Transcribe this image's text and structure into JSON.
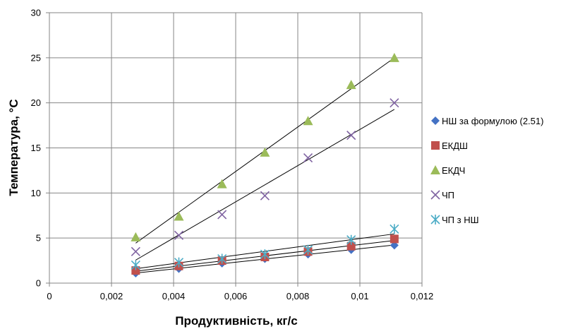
{
  "chart_data": {
    "type": "scatter",
    "title": "",
    "xlabel": "Продуктивність, кг/с",
    "ylabel": "Температура, °С",
    "xlim": [
      0,
      0.012
    ],
    "ylim": [
      0,
      30
    ],
    "x_ticks": [
      0,
      0.002,
      0.004,
      0.006,
      0.008,
      0.01,
      0.012
    ],
    "x_tick_labels": [
      "0",
      "0,002",
      "0,004",
      "0,006",
      "0,008",
      "0,01",
      "0,012"
    ],
    "y_ticks": [
      0,
      5,
      10,
      15,
      20,
      25,
      30
    ],
    "y_tick_labels": [
      "0",
      "5",
      "10",
      "15",
      "20",
      "25",
      "30"
    ],
    "grid": true,
    "legend_position": "right",
    "series": [
      {
        "name": "НШ за формулою (2.51)",
        "marker": "diamond",
        "color": "#4472C4",
        "trendline": true,
        "x": [
          0.00278,
          0.00417,
          0.00556,
          0.00694,
          0.00833,
          0.00972,
          0.01111
        ],
        "y": [
          1.1,
          1.6,
          2.2,
          2.7,
          3.2,
          3.7,
          4.2
        ]
      },
      {
        "name": "ЕКДШ",
        "marker": "square",
        "color": "#C0504D",
        "trendline": true,
        "x": [
          0.00278,
          0.00417,
          0.00556,
          0.00694,
          0.00833,
          0.00972,
          0.01111
        ],
        "y": [
          1.4,
          1.9,
          2.5,
          2.9,
          3.5,
          4.1,
          4.9
        ]
      },
      {
        "name": "ЕКДЧ",
        "marker": "triangle",
        "color": "#9BBB59",
        "trendline": true,
        "x": [
          0.00278,
          0.00417,
          0.00556,
          0.00694,
          0.00833,
          0.00972,
          0.01111
        ],
        "y": [
          5.1,
          7.4,
          11.0,
          14.5,
          18.0,
          22.0,
          25.0
        ]
      },
      {
        "name": "ЧП",
        "marker": "x",
        "color": "#8064A2",
        "trendline": true,
        "x": [
          0.00278,
          0.00417,
          0.00556,
          0.00694,
          0.00833,
          0.00972,
          0.01111
        ],
        "y": [
          3.5,
          5.3,
          7.6,
          9.7,
          13.9,
          16.4,
          20.0
        ]
      },
      {
        "name": "ЧП з НШ",
        "marker": "star",
        "color": "#4BACC6",
        "trendline": true,
        "x": [
          0.00278,
          0.00417,
          0.00556,
          0.00694,
          0.00833,
          0.00972,
          0.01111
        ],
        "y": [
          2.0,
          2.3,
          2.7,
          3.2,
          3.7,
          4.8,
          6.0
        ]
      }
    ]
  }
}
